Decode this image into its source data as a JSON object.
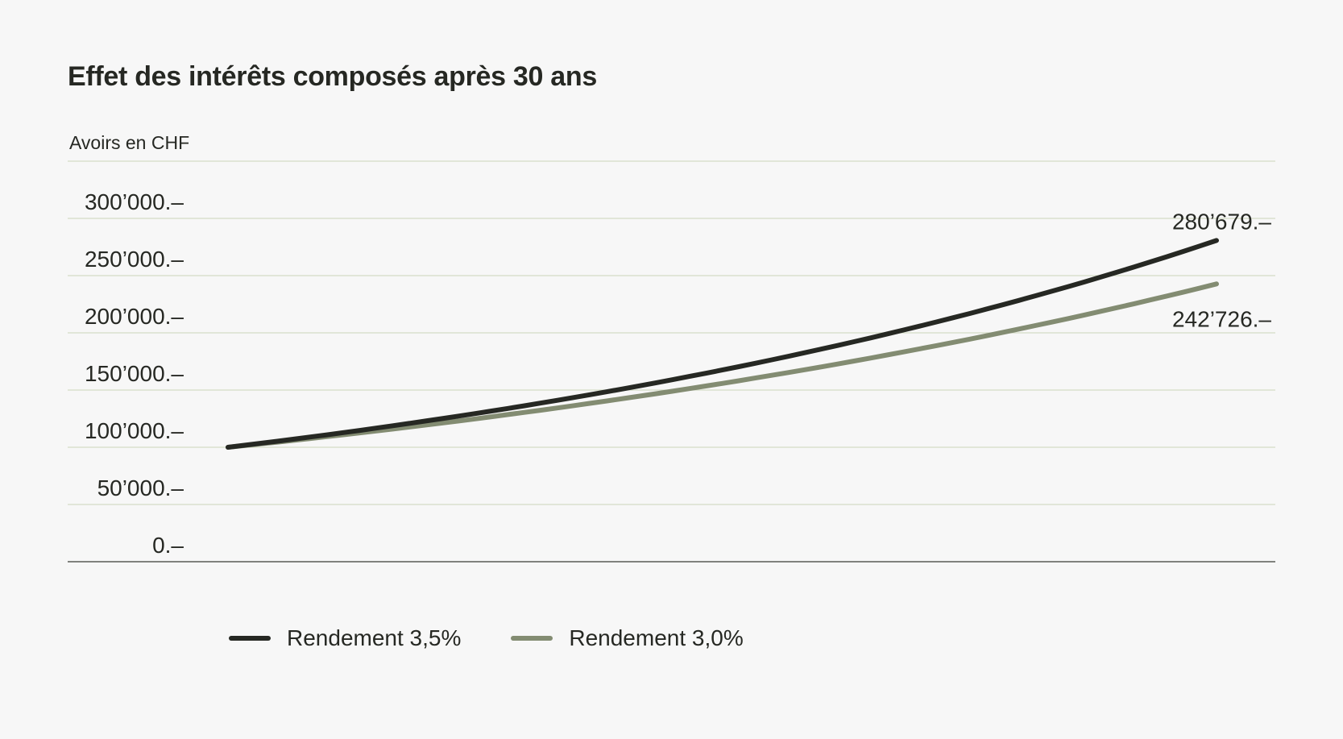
{
  "chart_data": {
    "type": "line",
    "title": "Effet des intérêts composés après 30 ans",
    "ylabel": "Avoirs en CHF",
    "xlabel": "",
    "x": [
      0,
      30
    ],
    "x_range": [
      0,
      30
    ],
    "ylim": [
      0,
      350000
    ],
    "y_ticks": [
      0,
      50000,
      100000,
      150000,
      200000,
      250000,
      300000
    ],
    "y_tick_labels": [
      "0.–",
      "50’000.–",
      "100’000.–",
      "150’000.–",
      "200’000.–",
      "250’000.–",
      "300’000.–"
    ],
    "grid": true,
    "legend_position": "bottom-left",
    "series": [
      {
        "name": "Rendement 3,5%",
        "rate": 0.035,
        "start": 100000,
        "end": 280679,
        "end_label": "280’679.–",
        "color": "#262823"
      },
      {
        "name": "Rendement 3,0%",
        "rate": 0.03,
        "start": 100000,
        "end": 242726,
        "end_label": "242’726.–",
        "color": "#838c72"
      }
    ]
  }
}
